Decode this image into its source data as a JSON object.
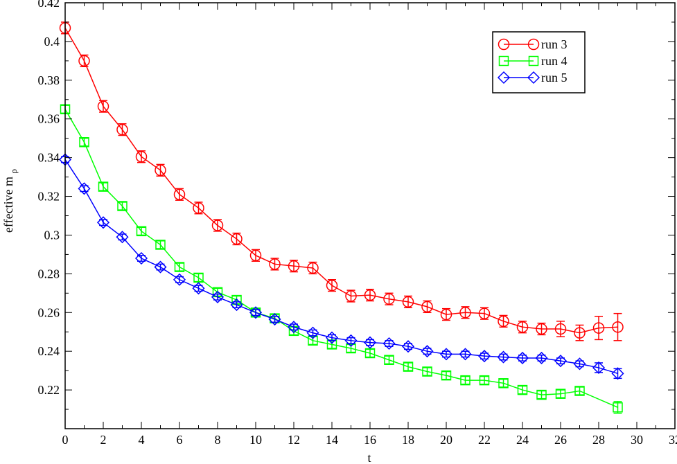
{
  "chart_data": {
    "type": "line",
    "xlabel": "t",
    "ylabel": "effective m",
    "ylabel_subscript": "ρ",
    "xlim": [
      0,
      32
    ],
    "ylim": [
      0.2,
      0.42
    ],
    "xticks": [
      0,
      2,
      4,
      6,
      8,
      10,
      12,
      14,
      16,
      18,
      20,
      22,
      24,
      26,
      28,
      30,
      32
    ],
    "yticks": [
      0.22,
      0.24,
      0.26,
      0.28,
      0.3,
      0.32,
      0.34,
      0.36,
      0.38,
      0.4,
      0.42
    ],
    "ytick_labels": [
      "0.22",
      "0.24",
      "0.26",
      "0.28",
      "0.3",
      "0.32",
      "0.34",
      "0.36",
      "0.38",
      "0.4",
      "0.42"
    ],
    "grid": false,
    "legend_position": "top-right",
    "series": [
      {
        "name": "run 3",
        "color": "#ff0000",
        "marker": "circle",
        "x": [
          0,
          1,
          2,
          3,
          4,
          5,
          6,
          7,
          8,
          9,
          10,
          11,
          12,
          13,
          14,
          15,
          16,
          17,
          18,
          19,
          20,
          21,
          22,
          23,
          24,
          25,
          26,
          27,
          28,
          29
        ],
        "y": [
          0.407,
          0.39,
          0.3665,
          0.3545,
          0.3405,
          0.3335,
          0.321,
          0.314,
          0.305,
          0.298,
          0.2895,
          0.285,
          0.284,
          0.283,
          0.274,
          0.2685,
          0.269,
          0.267,
          0.2655,
          0.263,
          0.259,
          0.26,
          0.2595,
          0.2555,
          0.2525,
          0.2515,
          0.2515,
          0.2495,
          0.252,
          0.2525
        ],
        "err": [
          0.003,
          0.003,
          0.003,
          0.003,
          0.003,
          0.003,
          0.003,
          0.003,
          0.003,
          0.003,
          0.003,
          0.003,
          0.003,
          0.003,
          0.003,
          0.003,
          0.003,
          0.003,
          0.003,
          0.003,
          0.003,
          0.003,
          0.003,
          0.003,
          0.003,
          0.003,
          0.004,
          0.004,
          0.006,
          0.007
        ]
      },
      {
        "name": "run 4",
        "color": "#00ff00",
        "marker": "square",
        "x": [
          0,
          1,
          2,
          3,
          4,
          5,
          6,
          7,
          8,
          9,
          10,
          11,
          12,
          13,
          14,
          15,
          16,
          17,
          18,
          19,
          20,
          21,
          22,
          23,
          24,
          25,
          26,
          27,
          29
        ],
        "y": [
          0.365,
          0.348,
          0.325,
          0.315,
          0.302,
          0.295,
          0.2835,
          0.278,
          0.2705,
          0.2665,
          0.26,
          0.257,
          0.2505,
          0.2455,
          0.2435,
          0.2415,
          0.239,
          0.2355,
          0.232,
          0.2295,
          0.2275,
          0.225,
          0.225,
          0.2235,
          0.22,
          0.2175,
          0.218,
          0.2195,
          0.211
        ],
        "err": [
          0.002,
          0.002,
          0.002,
          0.002,
          0.002,
          0.002,
          0.002,
          0.002,
          0.002,
          0.002,
          0.002,
          0.002,
          0.002,
          0.002,
          0.002,
          0.002,
          0.002,
          0.002,
          0.002,
          0.002,
          0.002,
          0.002,
          0.002,
          0.002,
          0.002,
          0.002,
          0.002,
          0.002,
          0.003
        ]
      },
      {
        "name": "run 5",
        "color": "#0000ff",
        "marker": "diamond",
        "x": [
          0,
          1,
          2,
          3,
          4,
          5,
          6,
          7,
          8,
          9,
          10,
          11,
          12,
          13,
          14,
          15,
          16,
          17,
          18,
          19,
          20,
          21,
          22,
          23,
          24,
          25,
          26,
          27,
          28,
          29
        ],
        "y": [
          0.339,
          0.324,
          0.3065,
          0.299,
          0.288,
          0.2835,
          0.277,
          0.2725,
          0.268,
          0.264,
          0.26,
          0.2565,
          0.2525,
          0.2495,
          0.247,
          0.2455,
          0.2445,
          0.244,
          0.2425,
          0.24,
          0.2385,
          0.2385,
          0.2375,
          0.237,
          0.2365,
          0.2365,
          0.235,
          0.2335,
          0.2315,
          0.2285
        ],
        "err": [
          0.0015,
          0.0015,
          0.0015,
          0.0015,
          0.0015,
          0.0015,
          0.0015,
          0.0015,
          0.0015,
          0.0015,
          0.0015,
          0.0015,
          0.0015,
          0.0015,
          0.0015,
          0.0015,
          0.0015,
          0.0015,
          0.0015,
          0.0015,
          0.0015,
          0.0015,
          0.0015,
          0.0015,
          0.0015,
          0.0015,
          0.0015,
          0.0015,
          0.0025,
          0.0025
        ]
      }
    ]
  }
}
